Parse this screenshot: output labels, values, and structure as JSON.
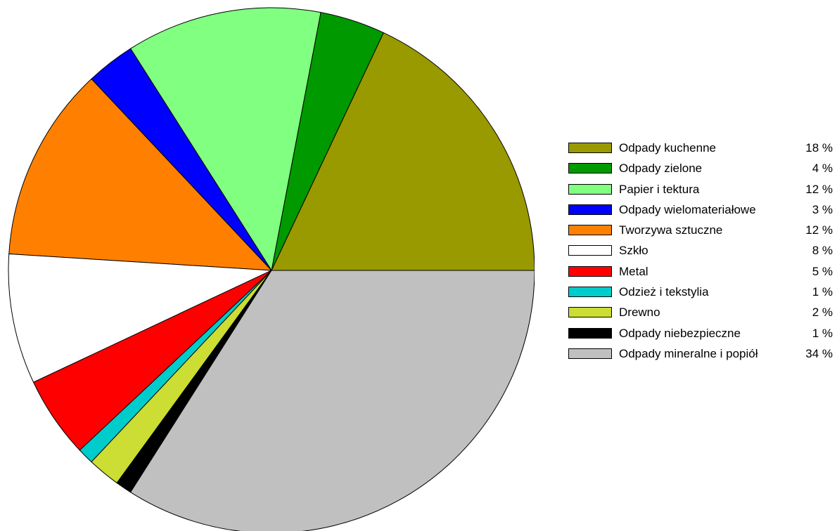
{
  "chart_data": {
    "type": "pie",
    "title": "",
    "start_angle_deg": 0,
    "direction": "counterclockwise",
    "slices": [
      {
        "label": "Odpady kuchenne",
        "value": 18,
        "value_label": "18 %",
        "color": "#999900"
      },
      {
        "label": "Odpady zielone",
        "value": 4,
        "value_label": "4 %",
        "color": "#009900"
      },
      {
        "label": "Papier i tektura",
        "value": 12,
        "value_label": "12 %",
        "color": "#80ff80"
      },
      {
        "label": "Odpady wielomateriałowe",
        "value": 3,
        "value_label": "3 %",
        "color": "#0000ff"
      },
      {
        "label": "Tworzywa sztuczne",
        "value": 12,
        "value_label": "12 %",
        "color": "#ff8000"
      },
      {
        "label": "Szkło",
        "value": 8,
        "value_label": "8 %",
        "color": "#ffffff"
      },
      {
        "label": "Metal",
        "value": 5,
        "value_label": "5 %",
        "color": "#ff0000"
      },
      {
        "label": "Odzież i tekstylia",
        "value": 1,
        "value_label": "1 %",
        "color": "#00cccc"
      },
      {
        "label": "Drewno",
        "value": 2,
        "value_label": "2 %",
        "color": "#ccdd33"
      },
      {
        "label": "Odpady niebezpieczne",
        "value": 1,
        "value_label": "1 %",
        "color": "#000000"
      },
      {
        "label": "Odpady mineralne i popiół",
        "value": 34,
        "value_label": "34 %",
        "color": "#c0c0c0"
      }
    ],
    "legend_placement": "right"
  }
}
